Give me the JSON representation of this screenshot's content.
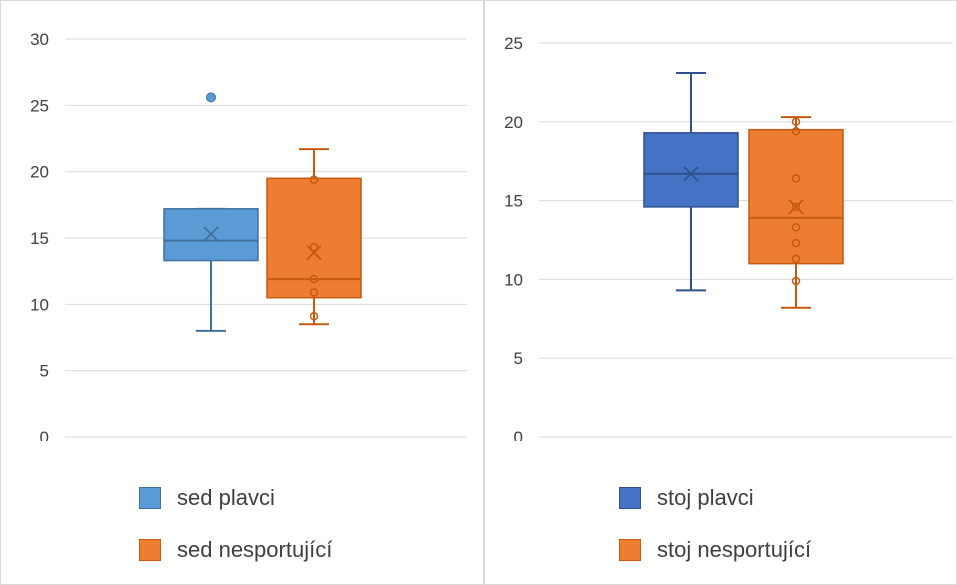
{
  "chart_data": [
    {
      "type": "box",
      "title": "",
      "xlabel": "",
      "ylabel": "",
      "ylim": [
        0,
        30
      ],
      "yticks": [
        0,
        5,
        10,
        15,
        20,
        25,
        30
      ],
      "grid": true,
      "legend_position": "bottom",
      "series": [
        {
          "name": "sed plavci",
          "color": "#5b9bd5",
          "edge": "#41719c",
          "whisker_low": 8,
          "q1": 13.3,
          "median": 14.8,
          "q3": 17.2,
          "whisker_high": 17.2,
          "mean": 15.3,
          "outliers": [
            25.6
          ],
          "points": []
        },
        {
          "name": "sed nesportující",
          "color": "#ed7d31",
          "edge": "#c55a11",
          "whisker_low": 8.5,
          "q1": 10.5,
          "median": 11.9,
          "q3": 19.5,
          "whisker_high": 21.7,
          "mean": 13.9,
          "outliers": [],
          "points": [
            9.1,
            10.9,
            11.9,
            14.3,
            19.4
          ]
        }
      ]
    },
    {
      "type": "box",
      "title": "",
      "xlabel": "",
      "ylabel": "",
      "ylim": [
        0,
        25
      ],
      "yticks": [
        0,
        5,
        10,
        15,
        20,
        25
      ],
      "grid": true,
      "legend_position": "bottom",
      "series": [
        {
          "name": "stoj plavci",
          "color": "#4472c4",
          "edge": "#2f528f",
          "whisker_low": 9.3,
          "q1": 14.6,
          "median": 16.7,
          "q3": 19.3,
          "whisker_high": 23.1,
          "mean": 16.7,
          "outliers": [],
          "points": []
        },
        {
          "name": "stoj nesportující",
          "color": "#ed7d31",
          "edge": "#c55a11",
          "whisker_low": 8.2,
          "q1": 11.0,
          "median": 13.9,
          "q3": 19.5,
          "whisker_high": 20.3,
          "mean": 14.6,
          "outliers": [],
          "points": [
            9.9,
            11.3,
            12.3,
            13.3,
            14.6,
            16.4,
            19.4,
            20.0
          ]
        }
      ]
    }
  ]
}
